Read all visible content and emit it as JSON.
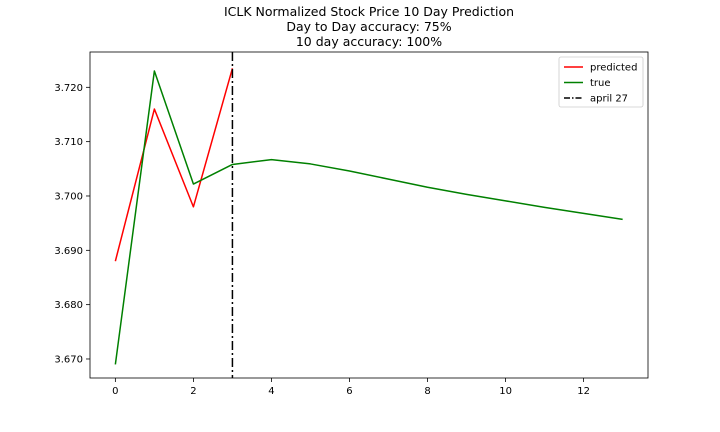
{
  "chart_data": {
    "type": "line",
    "title_lines": [
      "ICLK Normalized Stock Price 10 Day Prediction",
      "Day to Day accuracy: 75%",
      "10 day accuracy: 100%"
    ],
    "xlabel": "",
    "ylabel": "",
    "xlim": [
      -0.65,
      13.65
    ],
    "ylim": [
      3.6665,
      3.7265
    ],
    "xticks": [
      0,
      2,
      4,
      6,
      8,
      10,
      12
    ],
    "yticks": [
      3.67,
      3.68,
      3.69,
      3.7,
      3.71,
      3.72
    ],
    "ytick_labels": [
      "3.670",
      "3.680",
      "3.690",
      "3.700",
      "3.710",
      "3.720"
    ],
    "grid": false,
    "legend_position": "top-right",
    "series": [
      {
        "name": "predicted",
        "color": "#ff0000",
        "x": [
          0,
          1,
          2,
          3
        ],
        "y": [
          3.688,
          3.716,
          3.698,
          3.7235
        ]
      },
      {
        "name": "true",
        "color": "#008000",
        "x": [
          0,
          1,
          2,
          3,
          4,
          5,
          6,
          7,
          8,
          9,
          10,
          11,
          12,
          13
        ],
        "y": [
          3.669,
          3.723,
          3.7022,
          3.7058,
          3.7067,
          3.7059,
          3.7046,
          3.7031,
          3.7016,
          3.7003,
          3.6991,
          3.6979,
          3.6968,
          3.6957
        ]
      }
    ],
    "vline": {
      "name": "april 27",
      "x": 3,
      "color": "#000000",
      "style": "dash-dot"
    }
  }
}
